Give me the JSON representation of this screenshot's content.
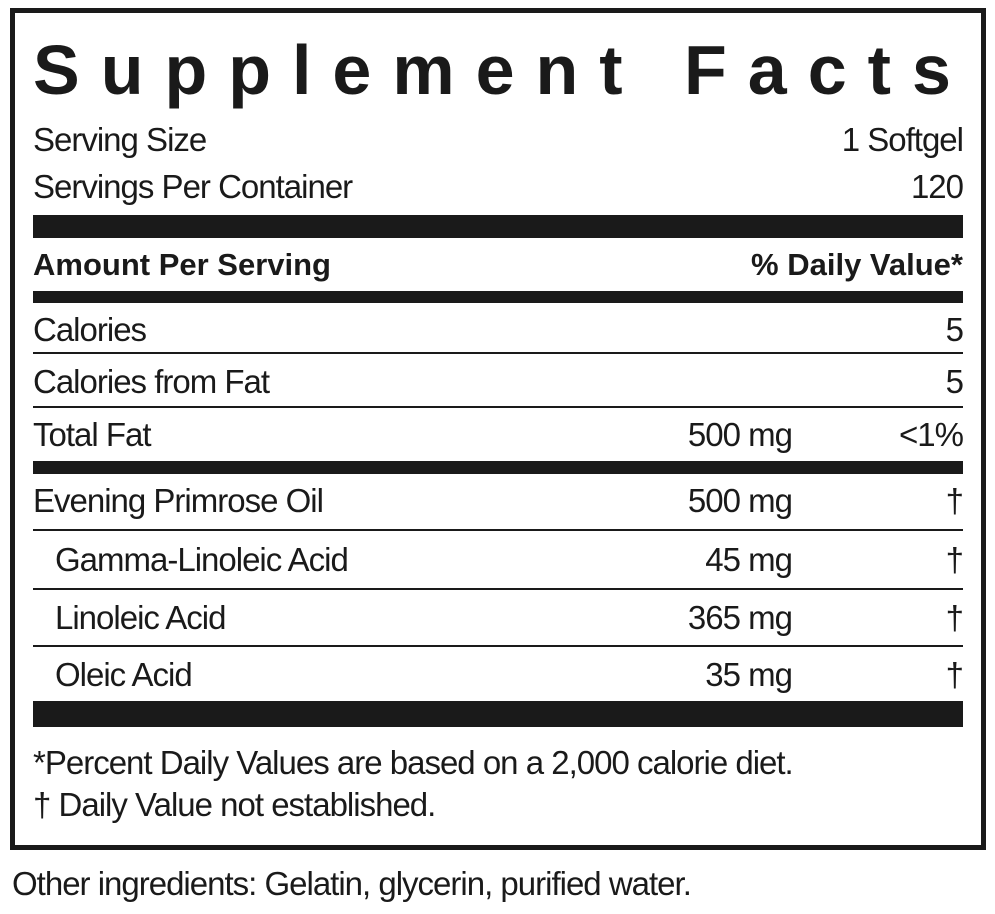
{
  "title": "Supplement Facts",
  "serving_size": {
    "label": "Serving Size",
    "value": "1 Softgel"
  },
  "servings_per_container": {
    "label": "Servings Per Container",
    "value": "120"
  },
  "header": {
    "amount": "Amount Per Serving",
    "dv": "% Daily Value*"
  },
  "rows": [
    {
      "name": "Calories",
      "amount": "",
      "dv": "5"
    },
    {
      "name": "Calories from Fat",
      "amount": "",
      "dv": "5"
    },
    {
      "name": "Total Fat",
      "amount": "500 mg",
      "dv": "<1%"
    },
    {
      "name": "Evening Primrose Oil",
      "amount": "500 mg",
      "dv": "†"
    },
    {
      "name": "Gamma-Linoleic Acid",
      "amount": "45 mg",
      "dv": "†"
    },
    {
      "name": "Linoleic Acid",
      "amount": "365 mg",
      "dv": "†"
    },
    {
      "name": "Oleic Acid",
      "amount": "35 mg",
      "dv": "†"
    }
  ],
  "footnotes": [
    "*Percent Daily Values are based on a 2,000 calorie diet.",
    "† Daily Value not established."
  ],
  "other_ingredients": "Other ingredients: Gelatin, glycerin, purified water."
}
